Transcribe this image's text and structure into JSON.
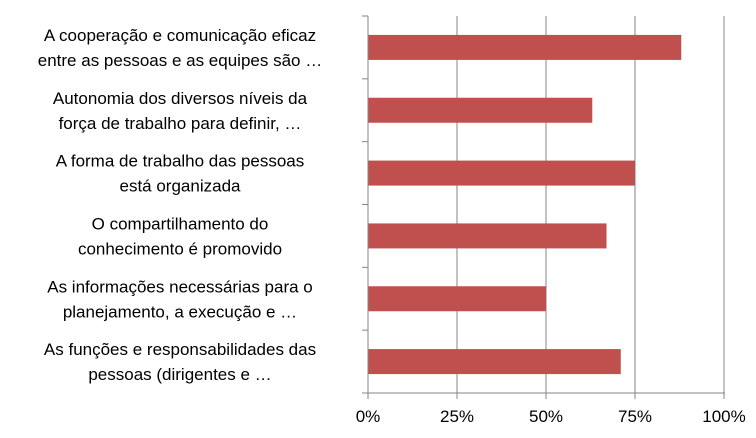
{
  "chart_data": {
    "type": "bar",
    "orientation": "horizontal",
    "categories": [
      [
        "A cooperação e comunicação eficaz",
        "entre as pessoas e as equipes são …"
      ],
      [
        "Autonomia dos diversos níveis da",
        "força de trabalho para definir, …"
      ],
      [
        "A forma de trabalho das pessoas",
        "está organizada"
      ],
      [
        "O compartilhamento do",
        "conhecimento é promovido"
      ],
      [
        "As informações necessárias para o",
        "planejamento, a execução e …"
      ],
      [
        "As funções e responsabilidades das",
        "pessoas (dirigentes e …"
      ]
    ],
    "values": [
      88,
      63,
      75,
      67,
      50,
      71
    ],
    "xlim": [
      0,
      100
    ],
    "xticks": [
      "0%",
      "25%",
      "50%",
      "75%",
      "100%"
    ],
    "grid": true,
    "bar_color": "#c0504d",
    "grid_color": "#868686",
    "title": "",
    "xlabel": "",
    "ylabel": ""
  }
}
